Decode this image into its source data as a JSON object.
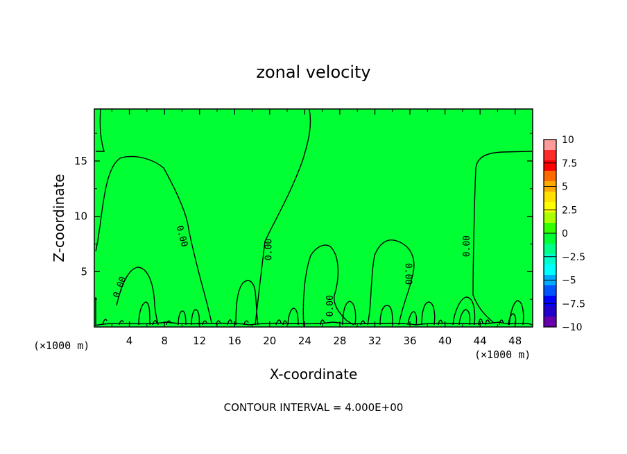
{
  "chart_data": {
    "type": "heatmap",
    "title": "zonal velocity",
    "xlabel": "X-coordinate",
    "ylabel": "Z-coordinate",
    "x_unit": "(×1000 m)",
    "x_unit_right": "(×1000 m)",
    "xlim": [
      0,
      50
    ],
    "ylim": [
      0,
      19.7
    ],
    "x_ticks": [
      4,
      8,
      12,
      16,
      20,
      24,
      28,
      32,
      36,
      40,
      44,
      48
    ],
    "y_ticks": [
      5,
      10,
      15
    ],
    "fill_color": "#00ff33",
    "colorbar": {
      "labels": [
        "10",
        "7.5",
        "5",
        "2.5",
        "0",
        "−2.5",
        "−5",
        "−7.5",
        "−10"
      ],
      "colors": [
        "#ff9a9a",
        "#ff2a2a",
        "#ff0000",
        "#ff6a00",
        "#ffaa00",
        "#ffe000",
        "#ffff00",
        "#aaff00",
        "#33ff00",
        "#00ff33",
        "#00ff88",
        "#00ffcc",
        "#00ffff",
        "#00aaff",
        "#0055ff",
        "#0000ff",
        "#2200cc",
        "#6600aa"
      ]
    },
    "contour_labels": [
      {
        "text": "0.00",
        "x": 2.9,
        "z": 3.6,
        "angle": -70
      },
      {
        "text": "0.00",
        "x": 10.0,
        "z": 8.2,
        "angle": 75
      },
      {
        "text": "0.00",
        "x": 19.9,
        "z": 7.0,
        "angle": -90
      },
      {
        "text": "0.00",
        "x": 26.9,
        "z": 1.9,
        "angle": -90
      },
      {
        "text": "0.00",
        "x": 35.8,
        "z": 4.8,
        "angle": 90
      },
      {
        "text": "0.00",
        "x": 42.5,
        "z": 7.3,
        "angle": -90
      }
    ],
    "footer": "CONTOUR INTERVAL = 4.000E+00"
  }
}
